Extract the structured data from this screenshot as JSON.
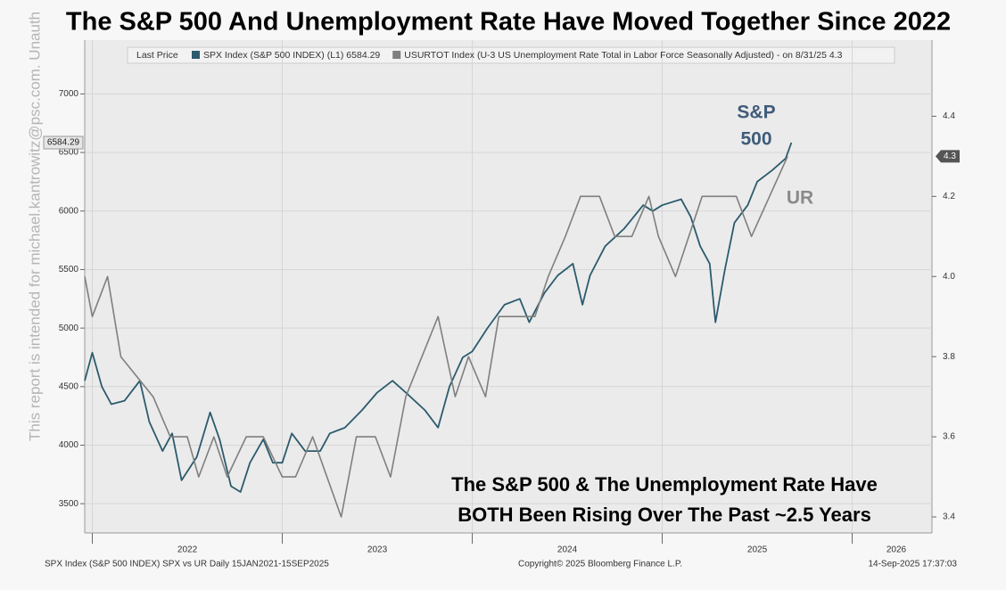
{
  "chart_data": {
    "type": "line",
    "title": "The S&P 500 And Unemployment Rate Have Moved Together Since 2022",
    "legend_label": "Last Price",
    "watermark": "This report is intended for michael.kantrowitz@psc.com. Unauth",
    "annotations": [
      "S&P",
      "500",
      "UR",
      "The S&P 500 & The Unemployment Rate Have",
      "BOTH Been Rising Over The Past ~2.5 Years"
    ],
    "footer_left": "SPX Index (S&P 500 INDEX) SPX vs UR  Daily 15JAN2021-15SEP2025",
    "footer_center": "Copyright© 2025 Bloomberg Finance L.P.",
    "footer_right": "14-Sep-2025 17:37:03",
    "xlim": [
      2021.96,
      2026.42
    ],
    "xticks": [
      2022,
      2023,
      2024,
      2025,
      2026
    ],
    "ylim": [
      3250,
      7460
    ],
    "yticks": [
      3500,
      4000,
      4500,
      5000,
      5500,
      6000,
      6500,
      7000
    ],
    "y2lim": [
      3.36,
      4.59
    ],
    "y2ticks": [
      3.4,
      3.6,
      3.8,
      {
        "value": 4,
        "label": "4.0"
      },
      4.2,
      4.4
    ],
    "grid": true,
    "series": [
      {
        "name": "SPX Index (S&P 500 INDEX)  (L1) 6584.29",
        "color": "#2b5b6d",
        "axis": "y",
        "x": [
          2021.96,
          2022.0,
          2022.05,
          2022.1,
          2022.17,
          2022.25,
          2022.3,
          2022.37,
          2022.42,
          2022.47,
          2022.55,
          2022.62,
          2022.67,
          2022.73,
          2022.78,
          2022.83,
          2022.9,
          2022.95,
          2023.0,
          2023.05,
          2023.12,
          2023.2,
          2023.25,
          2023.33,
          2023.42,
          2023.5,
          2023.58,
          2023.65,
          2023.75,
          2023.82,
          2023.88,
          2023.95,
          2024.0,
          2024.08,
          2024.17,
          2024.25,
          2024.3,
          2024.38,
          2024.45,
          2024.53,
          2024.58,
          2024.62,
          2024.7,
          2024.8,
          2024.9,
          2024.95,
          2025.0,
          2025.1,
          2025.15,
          2025.2,
          2025.25,
          2025.28,
          2025.33,
          2025.38,
          2025.45,
          2025.5,
          2025.58,
          2025.65,
          2025.68
        ],
        "values": [
          4550,
          4790,
          4500,
          4350,
          4380,
          4550,
          4200,
          3950,
          4100,
          3700,
          3900,
          4280,
          4050,
          3650,
          3600,
          3850,
          4050,
          3850,
          3850,
          4100,
          3950,
          3950,
          4100,
          4150,
          4300,
          4450,
          4550,
          4450,
          4300,
          4150,
          4500,
          4750,
          4800,
          5000,
          5200,
          5250,
          5050,
          5300,
          5450,
          5550,
          5200,
          5450,
          5700,
          5850,
          6050,
          6000,
          6050,
          6100,
          5950,
          5700,
          5550,
          5050,
          5500,
          5900,
          6050,
          6250,
          6350,
          6450,
          6584.29
        ]
      },
      {
        "name": "USURTOT Index (U-3 US Unemployment Rate Total in Labor Force Seasonally Adjusted) -  on 8/31/25 4.3",
        "color": "#7f7f7f",
        "axis": "y2",
        "x": [
          2021.96,
          2022.0,
          2022.08,
          2022.15,
          2022.32,
          2022.41,
          2022.5,
          2022.56,
          2022.64,
          2022.71,
          2022.81,
          2022.9,
          2023.0,
          2023.07,
          2023.16,
          2023.31,
          2023.39,
          2023.49,
          2023.57,
          2023.65,
          2023.82,
          2023.91,
          2023.98,
          2024.07,
          2024.14,
          2024.28,
          2024.33,
          2024.4,
          2024.49,
          2024.57,
          2024.67,
          2024.75,
          2024.84,
          2024.93,
          2024.98,
          2025.07,
          2025.21,
          2025.39,
          2025.47,
          2025.66
        ],
        "values": [
          4.0,
          3.9,
          4.0,
          3.8,
          3.7,
          3.6,
          3.6,
          3.5,
          3.6,
          3.5,
          3.6,
          3.6,
          3.5,
          3.5,
          3.6,
          3.4,
          3.6,
          3.6,
          3.5,
          3.7,
          3.9,
          3.7,
          3.8,
          3.7,
          3.9,
          3.9,
          3.9,
          4.0,
          4.1,
          4.2,
          4.2,
          4.1,
          4.1,
          4.2,
          4.1,
          4.0,
          4.2,
          4.2,
          4.1,
          4.3
        ]
      }
    ]
  }
}
